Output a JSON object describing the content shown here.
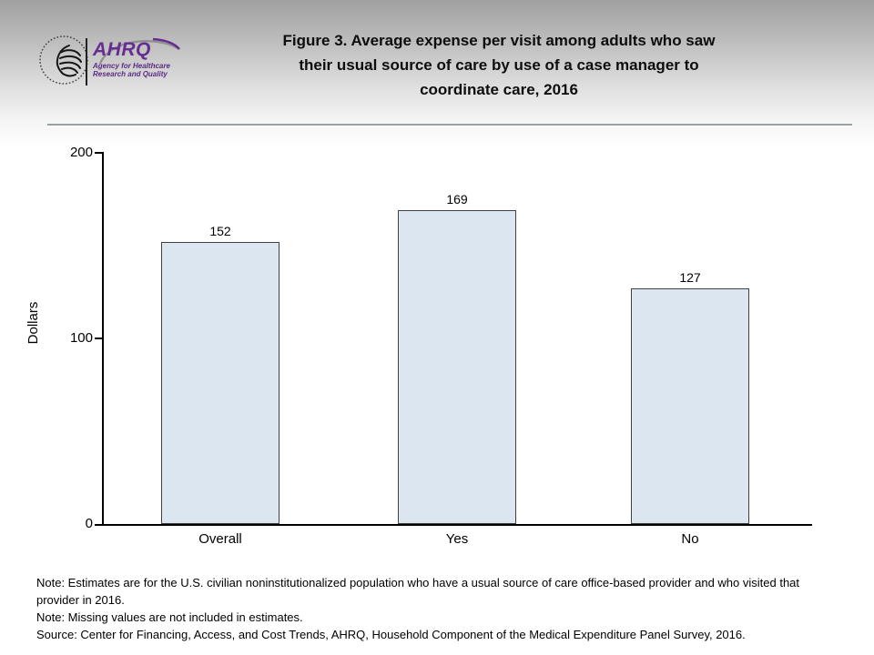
{
  "header": {
    "title_line1": "Figure 3. Average expense per visit among adults who saw",
    "title_line2": "their usual source of care by use of a case manager to",
    "title_line3": "coordinate care, 2016",
    "logo": {
      "ahrq_acronym": "AHRQ",
      "ahrq_tagline_line1": "Agency for Healthcare",
      "ahrq_tagline_line2": "Research and Quality",
      "ahrq_purple": "#662d91"
    }
  },
  "chart_data": {
    "type": "bar",
    "title": "Figure 3. Average expense per visit among adults who saw their usual source of care by use of a case manager to coordinate care, 2016",
    "categories": [
      "Overall",
      "Yes",
      "No"
    ],
    "values": [
      152,
      169,
      127
    ],
    "xlabel": "",
    "ylabel": "Dollars",
    "ylim": [
      0,
      200
    ],
    "yticks": [
      0,
      100,
      200
    ],
    "grid": false,
    "legend": false,
    "bar_fill": "#dce6f1",
    "bar_border": "#424242"
  },
  "notes": {
    "note1": "Note: Estimates are for the U.S. civilian noninstitutionalized population who have a usual source of care office-based provider and who visited that provider in 2016.",
    "note2": "Note: Missing values are not included in estimates.",
    "source": "Source: Center for Financing, Access, and Cost Trends, AHRQ, Household Component of the Medical Expenditure Panel Survey, 2016."
  }
}
